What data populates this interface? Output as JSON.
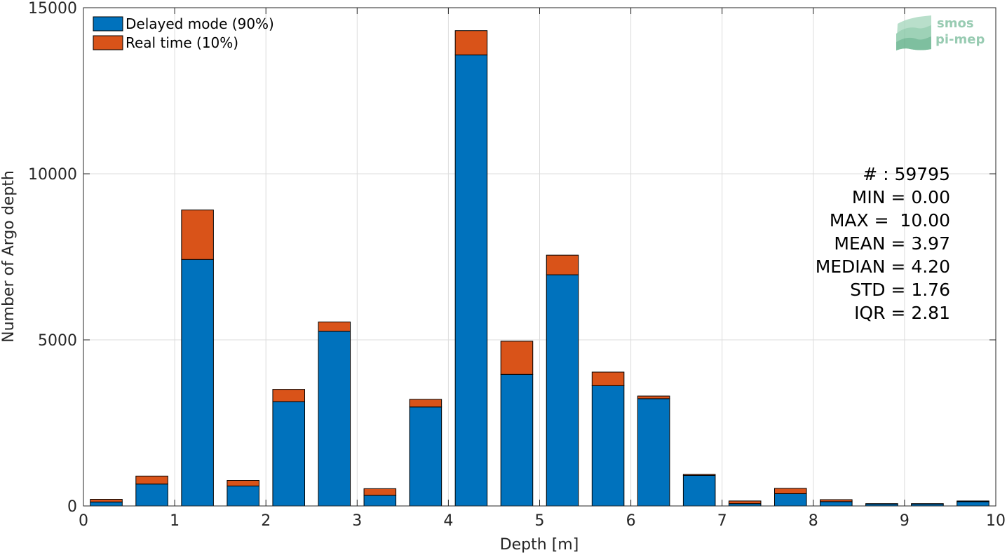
{
  "chart_data": {
    "type": "bar",
    "stacked": true,
    "xlabel": "Depth [m]",
    "ylabel": "Number of Argo depth",
    "xlim": [
      0,
      10
    ],
    "ylim": [
      0,
      15000
    ],
    "x_ticks": [
      "0",
      "1",
      "2",
      "3",
      "4",
      "5",
      "6",
      "7",
      "8",
      "9",
      "10"
    ],
    "y_ticks": [
      "0",
      "5000",
      "10000",
      "15000"
    ],
    "grid": true,
    "legend_position": "top-left",
    "bin_width": 0.5,
    "x": [
      0.25,
      0.75,
      1.25,
      1.75,
      2.25,
      2.75,
      3.25,
      3.75,
      4.25,
      4.75,
      5.25,
      5.75,
      6.25,
      6.75,
      7.25,
      7.75,
      8.25,
      8.75,
      9.25,
      9.75
    ],
    "series": [
      {
        "name": "Delayed mode (90%)",
        "color": "#0072bd",
        "values": [
          120,
          660,
          7420,
          600,
          3140,
          5260,
          320,
          2980,
          13580,
          3960,
          6960,
          3620,
          3230,
          920,
          70,
          370,
          130,
          60,
          60,
          130
        ]
      },
      {
        "name": "Real time (10%)",
        "color": "#d95319",
        "values": [
          80,
          240,
          1490,
          170,
          370,
          280,
          200,
          230,
          730,
          1000,
          590,
          410,
          80,
          30,
          80,
          160,
          60,
          10,
          10,
          20
        ]
      }
    ]
  },
  "stats": {
    "count": "# : 59795",
    "min": "MIN = 0.00",
    "max": "MAX =  10.00",
    "mean": "MEAN = 3.97",
    "median": "MEDIAN = 4.20",
    "std": "STD = 1.76",
    "iqr": "IQR = 2.81"
  },
  "logo": {
    "line1": "smos",
    "line2": "pi-mep"
  }
}
